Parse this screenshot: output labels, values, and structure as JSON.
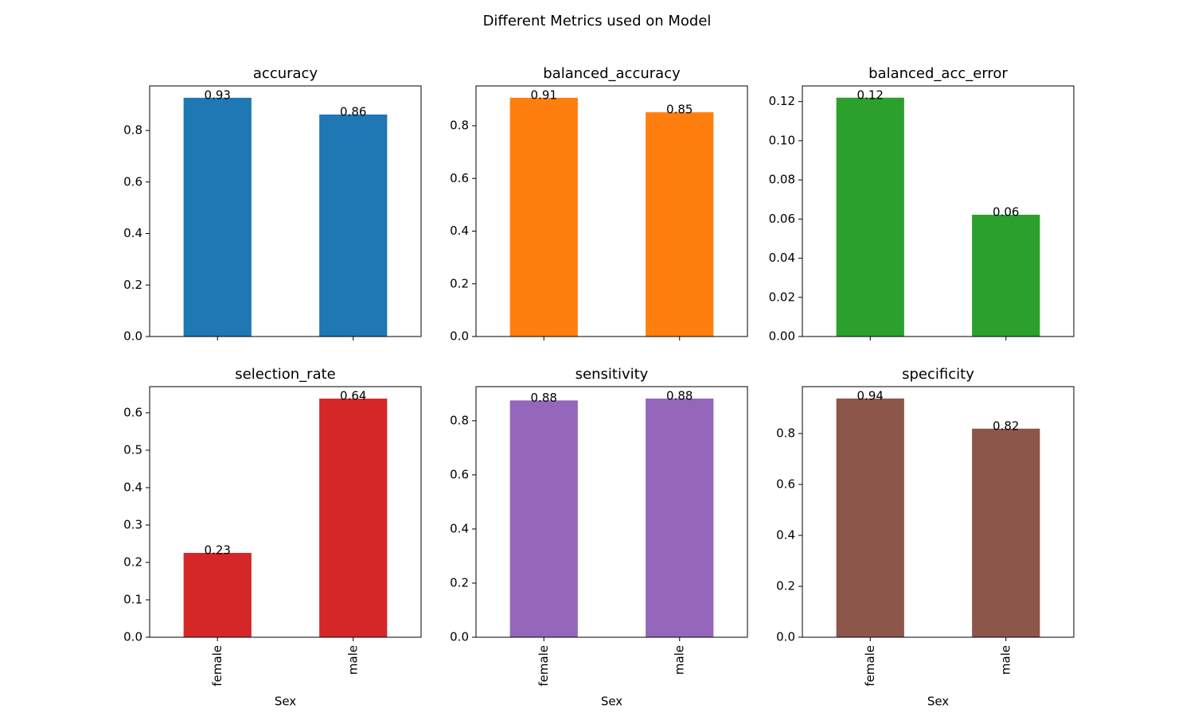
{
  "title": "Different Metrics used on Model",
  "chart_data": [
    {
      "type": "bar",
      "title": "accuracy",
      "categories": [
        null,
        null
      ],
      "values": [
        0.927,
        0.862
      ],
      "value_labels": [
        "0.93",
        "0.86"
      ],
      "color": "#1f77b4",
      "ylim": [
        0,
        0.973
      ],
      "yticks": [
        {
          "value": 0,
          "label": "0.0"
        },
        0.2,
        0.4,
        0.6,
        0.8
      ]
    },
    {
      "type": "bar",
      "title": "balanced_accuracy",
      "categories": [
        null,
        null
      ],
      "values": [
        0.906,
        0.851
      ],
      "value_labels": [
        "0.91",
        "0.85"
      ],
      "color": "#ff7f0e",
      "ylim": [
        0,
        0.951
      ],
      "yticks": [
        {
          "value": 0,
          "label": "0.0"
        },
        0.2,
        0.4,
        0.6,
        0.8
      ]
    },
    {
      "type": "bar",
      "title": "balanced_acc_error",
      "categories": [
        null,
        null
      ],
      "values": [
        0.122,
        0.0622
      ],
      "value_labels": [
        "0.12",
        "0.06"
      ],
      "color": "#2ca02c",
      "ylim": [
        0,
        0.128
      ],
      "yticks": [
        {
          "value": 0,
          "label": "0.00"
        },
        0.02,
        0.04,
        0.06,
        0.08,
        {
          "value": 0.1,
          "label": "0.10"
        },
        0.12
      ]
    },
    {
      "type": "bar",
      "title": "selection_rate",
      "xlabel": "Sex",
      "categories": [
        "female",
        "male"
      ],
      "values": [
        0.2255,
        0.638
      ],
      "value_labels": [
        "0.23",
        "0.64"
      ],
      "color": "#d62728",
      "ylim": [
        0,
        0.67
      ],
      "yticks": [
        {
          "value": 0,
          "label": "0.0"
        },
        0.1,
        0.2,
        0.3,
        0.4,
        0.5,
        0.6
      ]
    },
    {
      "type": "bar",
      "title": "sensitivity",
      "xlabel": "Sex",
      "categories": [
        "female",
        "male"
      ],
      "values": [
        0.875,
        0.882
      ],
      "value_labels": [
        "0.88",
        "0.88"
      ],
      "color": "#9467bd",
      "ylim": [
        0,
        0.926
      ],
      "yticks": [
        {
          "value": 0,
          "label": "0.0"
        },
        0.2,
        0.4,
        0.6,
        0.8
      ]
    },
    {
      "type": "bar",
      "title": "specificity",
      "xlabel": "Sex",
      "categories": [
        "female",
        "male"
      ],
      "values": [
        0.9375,
        0.819
      ],
      "value_labels": [
        "0.94",
        "0.82"
      ],
      "color": "#8c564b",
      "ylim": [
        0,
        0.984
      ],
      "yticks": [
        {
          "value": 0,
          "label": "0.0"
        },
        0.2,
        0.4,
        0.6,
        0.8
      ]
    }
  ]
}
